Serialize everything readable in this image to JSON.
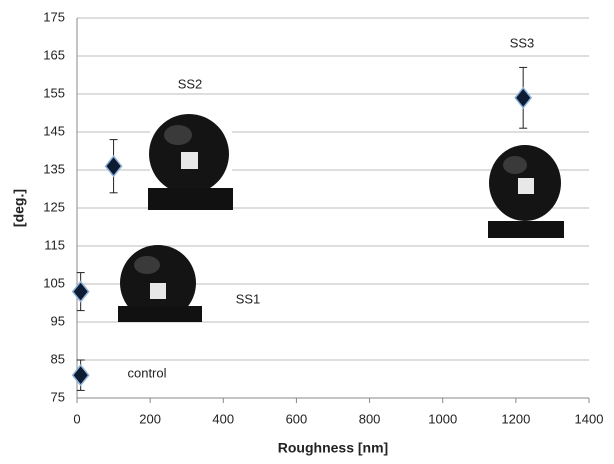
{
  "chart_data": {
    "type": "scatter",
    "x_label": "Roughness [nm]",
    "y_label": "[deg.]",
    "labels": [
      "control",
      "SS1",
      "SS2",
      "SS3"
    ],
    "x": [
      10,
      10,
      100,
      1220
    ],
    "values": [
      81,
      103,
      136,
      154
    ],
    "errors": [
      4,
      5,
      7,
      8
    ],
    "color": "#0d1b33",
    "edge_color": "#8fb3d9",
    "xlim": [
      0,
      1400
    ],
    "xticks": [
      0,
      200,
      400,
      600,
      800,
      1000,
      1200,
      1400
    ],
    "ylim": [
      75,
      175
    ],
    "yticks": [
      75,
      85,
      95,
      105,
      115,
      125,
      135,
      145,
      155,
      165,
      175
    ],
    "grid": true
  }
}
